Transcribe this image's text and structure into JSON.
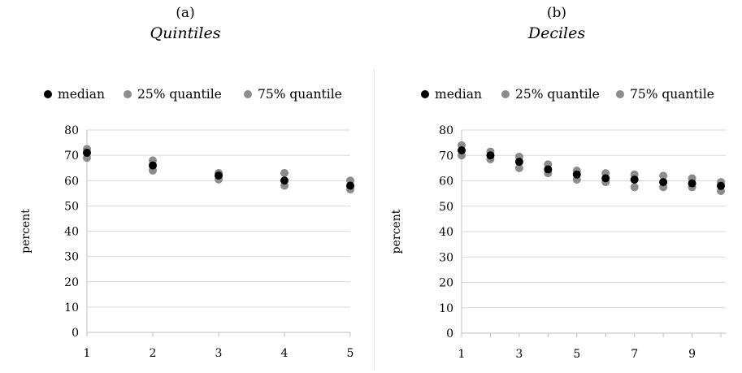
{
  "chart_data": [
    {
      "type": "scatter",
      "panel_letter": "(a)",
      "title": "Quintiles",
      "ylabel": "percent",
      "xlabel": "",
      "ylim": [
        0,
        80
      ],
      "yticks": [
        0,
        10,
        20,
        30,
        40,
        50,
        60,
        70,
        80
      ],
      "xlim": [
        1,
        5
      ],
      "xticks": [
        1,
        2,
        3,
        4,
        5
      ],
      "grid": "horizontal",
      "legend_position": "top",
      "x": [
        1,
        2,
        3,
        4,
        5
      ],
      "series": [
        {
          "name": "median",
          "color": "#000000",
          "values": [
            71,
            66,
            62,
            60,
            58
          ]
        },
        {
          "name": "25% quantile",
          "color": "#8c8c8c",
          "values": [
            69,
            64,
            60.5,
            58,
            56.5
          ]
        },
        {
          "name": "75% quantile",
          "color": "#8c8c8c",
          "values": [
            72.5,
            68,
            63,
            63,
            60
          ]
        }
      ]
    },
    {
      "type": "scatter",
      "panel_letter": "(b)",
      "title": "Deciles",
      "ylabel": "percent",
      "xlabel": "",
      "ylim": [
        0,
        80
      ],
      "yticks": [
        0,
        10,
        20,
        30,
        40,
        50,
        60,
        70,
        80
      ],
      "xlim": [
        1,
        10
      ],
      "xticks": [
        1,
        3,
        5,
        7,
        9
      ],
      "grid": "horizontal",
      "legend_position": "top",
      "x": [
        1,
        2,
        3,
        4,
        5,
        6,
        7,
        8,
        9,
        10
      ],
      "series": [
        {
          "name": "median",
          "color": "#000000",
          "values": [
            72,
            70,
            67.5,
            64.5,
            62.5,
            61,
            60.5,
            59.5,
            59,
            58
          ]
        },
        {
          "name": "25% quantile",
          "color": "#8c8c8c",
          "values": [
            70,
            68.5,
            65,
            63,
            60.5,
            59.5,
            57.5,
            57.5,
            57.5,
            56
          ]
        },
        {
          "name": "75% quantile",
          "color": "#8c8c8c",
          "values": [
            74,
            71.5,
            69.5,
            66.5,
            64,
            63,
            62.5,
            62,
            61,
            59.5
          ]
        }
      ]
    }
  ]
}
